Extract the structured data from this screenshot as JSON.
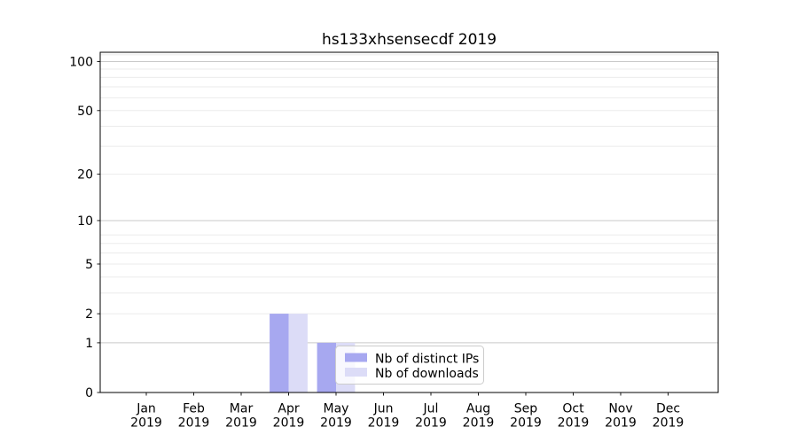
{
  "chart_data": {
    "type": "bar",
    "title": "hs133xhsensecdf 2019",
    "x_categories": [
      "Jan",
      "Feb",
      "Mar",
      "Apr",
      "May",
      "Jun",
      "Jul",
      "Aug",
      "Sep",
      "Oct",
      "Nov",
      "Dec"
    ],
    "x_year": "2019",
    "y_scale": "log1p",
    "y_ticks": [
      0,
      1,
      2,
      5,
      10,
      20,
      50,
      100
    ],
    "ylim": [
      0,
      114
    ],
    "grid": {
      "values": [
        1,
        2,
        3,
        4,
        5,
        6,
        7,
        8,
        10,
        20,
        30,
        40,
        50,
        60,
        70,
        80,
        90,
        100,
        110
      ],
      "emphasized": [
        1,
        10,
        100
      ],
      "color": "#ebebeb",
      "emphasized_color": "#c9c9c9"
    },
    "series": [
      {
        "name": "Nb of distinct IPs",
        "color": "#a7a8f0",
        "values": [
          0,
          0,
          0,
          2,
          1,
          0,
          0,
          0,
          0,
          0,
          0,
          0
        ]
      },
      {
        "name": "Nb of downloads",
        "color": "#dcdcf7",
        "values": [
          0,
          0,
          0,
          2,
          1,
          0,
          0,
          0,
          0,
          0,
          0,
          0
        ]
      }
    ],
    "legend": {
      "entries": [
        "Nb of distinct IPs",
        "Nb of downloads"
      ],
      "background": "rgba(255,255,255,0.8)",
      "border": "#cccccc"
    }
  }
}
